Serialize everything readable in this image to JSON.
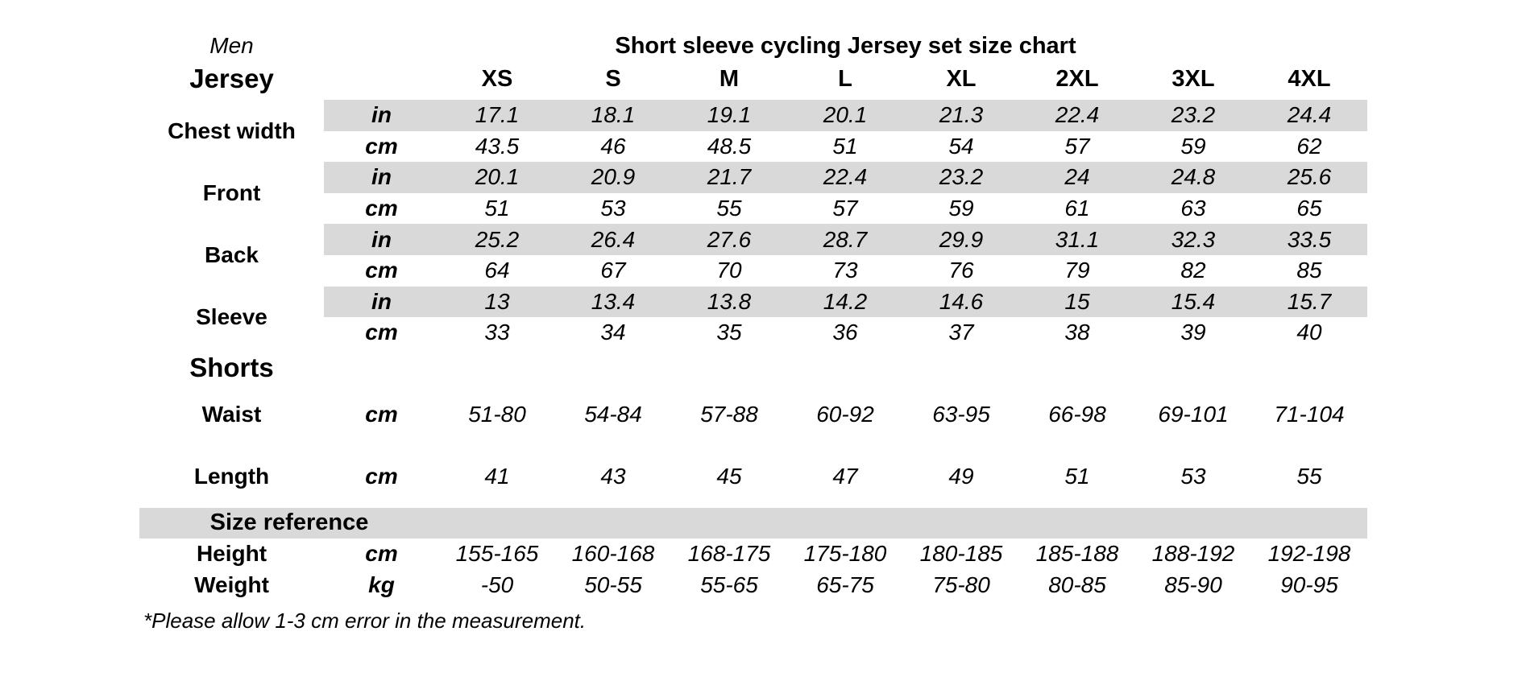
{
  "header": {
    "gender": "Men"
  },
  "colors": {
    "band": "#d9d9d9",
    "text": "#000000",
    "background": "#ffffff"
  },
  "chart_data": {
    "type": "table",
    "title": "Short sleeve cycling Jersey set size chart",
    "columns": [
      "XS",
      "S",
      "M",
      "L",
      "XL",
      "2XL",
      "3XL",
      "4XL"
    ],
    "sections": [
      {
        "section": "Jersey",
        "groups": [
          {
            "label": "Chest width",
            "rows": [
              {
                "unit": "in",
                "values": [
                  "17.1",
                  "18.1",
                  "19.1",
                  "20.1",
                  "21.3",
                  "22.4",
                  "23.2",
                  "24.4"
                ]
              },
              {
                "unit": "cm",
                "values": [
                  "43.5",
                  "46",
                  "48.5",
                  "51",
                  "54",
                  "57",
                  "59",
                  "62"
                ]
              }
            ]
          },
          {
            "label": "Front",
            "rows": [
              {
                "unit": "in",
                "values": [
                  "20.1",
                  "20.9",
                  "21.7",
                  "22.4",
                  "23.2",
                  "24",
                  "24.8",
                  "25.6"
                ]
              },
              {
                "unit": "cm",
                "values": [
                  "51",
                  "53",
                  "55",
                  "57",
                  "59",
                  "61",
                  "63",
                  "65"
                ]
              }
            ]
          },
          {
            "label": "Back",
            "rows": [
              {
                "unit": "in",
                "values": [
                  "25.2",
                  "26.4",
                  "27.6",
                  "28.7",
                  "29.9",
                  "31.1",
                  "32.3",
                  "33.5"
                ]
              },
              {
                "unit": "cm",
                "values": [
                  "64",
                  "67",
                  "70",
                  "73",
                  "76",
                  "79",
                  "82",
                  "85"
                ]
              }
            ]
          },
          {
            "label": "Sleeve",
            "rows": [
              {
                "unit": "in",
                "values": [
                  "13",
                  "13.4",
                  "13.8",
                  "14.2",
                  "14.6",
                  "15",
                  "15.4",
                  "15.7"
                ]
              },
              {
                "unit": "cm",
                "values": [
                  "33",
                  "34",
                  "35",
                  "36",
                  "37",
                  "38",
                  "39",
                  "40"
                ]
              }
            ]
          }
        ]
      },
      {
        "section": "Shorts",
        "rows": [
          {
            "label": "Waist",
            "unit": "cm",
            "values": [
              "51-80",
              "54-84",
              "57-88",
              "60-92",
              "63-95",
              "66-98",
              "69-101",
              "71-104"
            ]
          },
          {
            "label": "Length",
            "unit": "cm",
            "values": [
              "41",
              "43",
              "45",
              "47",
              "49",
              "51",
              "53",
              "55"
            ]
          }
        ]
      },
      {
        "section": "Size reference",
        "rows": [
          {
            "label": "Height",
            "unit": "cm",
            "values": [
              "155-165",
              "160-168",
              "168-175",
              "175-180",
              "180-185",
              "185-188",
              "188-192",
              "192-198"
            ]
          },
          {
            "label": "Weight",
            "unit": "kg",
            "values": [
              "-50",
              "50-55",
              "55-65",
              "65-75",
              "75-80",
              "80-85",
              "85-90",
              "90-95"
            ]
          }
        ]
      }
    ],
    "footnote": "*Please allow 1-3 cm error in the measurement."
  }
}
